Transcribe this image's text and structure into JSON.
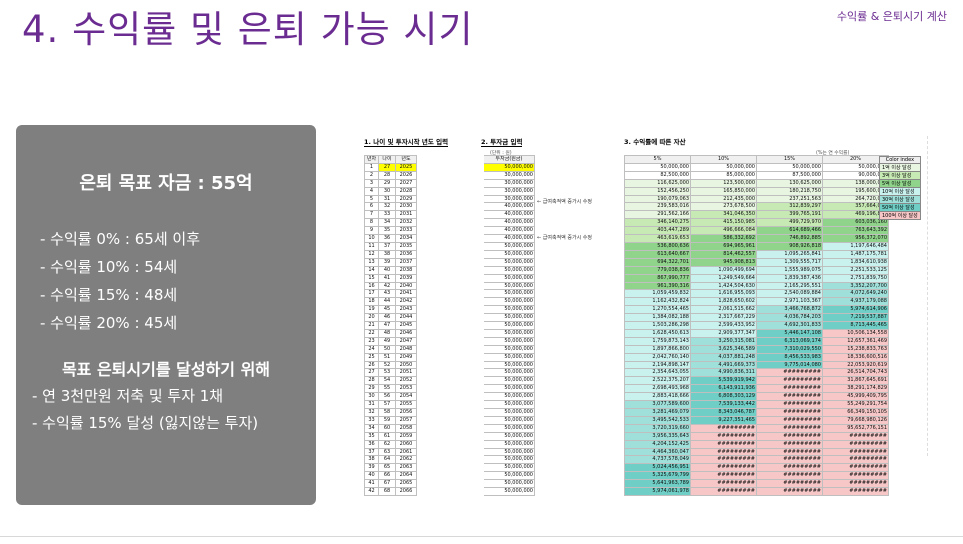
{
  "title": "4. 수익률 및 은퇴 가능 시기",
  "corner_label": "수익률 & 은퇴시기 계산",
  "summary": {
    "heading": "은퇴 목표 자금 : 55억",
    "rates": [
      "- 수익률    0% : 65세 이후",
      "- 수익률 10% : 54세",
      "- 수익률 15% : 48세",
      "- 수익률 20% : 45세"
    ],
    "goal_heading": "목표 은퇴시기를 달성하기 위해",
    "goal_items": [
      "- 연 3천만원 저축 및 투자 1채",
      "- 수익률 15% 달성 (잃지않는 투자)"
    ]
  },
  "sheet": {
    "section1": "1. 나이 및 투자시작 년도 입력",
    "section2": "2. 투자금 입력",
    "section3": "3. 수익률에 따른 자산",
    "unit_left": "(단위 : 원)",
    "unit_right": "(%는 연 수익률)",
    "left_headers": [
      "년차",
      "나이",
      "년도",
      "투자금(원금)"
    ],
    "rate_headers": [
      "5%",
      "10%",
      "15%",
      "20%"
    ],
    "note1": "← 급여축적액 증가시 수정",
    "note2": "← 급여축적액 증가시 수정",
    "legend_title": "Color index",
    "legend_items": [
      {
        "label": "1억 이상 달성",
        "color": "#e8f5e0"
      },
      {
        "label": "3억 이상 달성",
        "color": "#c7e9b4"
      },
      {
        "label": "5억 이상 달성",
        "color": "#8fd48a"
      },
      {
        "label": "10억 이상 달성",
        "color": "#c9f1ee"
      },
      {
        "label": "30억 이상 달성",
        "color": "#9fe0da"
      },
      {
        "label": "50억 이상 달성",
        "color": "#6fcfc6"
      },
      {
        "label": "100억 이상 달성",
        "color": "#f7c6c6"
      }
    ],
    "rows": [
      [
        "1",
        "27",
        "2025",
        "50,000,000",
        "50,000,000",
        "50,000,000",
        "50,000,000",
        "50,000,000"
      ],
      [
        "2",
        "28",
        "2026",
        "30,000,000",
        "82,500,000",
        "85,000,000",
        "87,500,000",
        "90,000,000"
      ],
      [
        "3",
        "29",
        "2027",
        "30,000,000",
        "116,625,000",
        "123,500,000",
        "130,625,000",
        "138,000,000"
      ],
      [
        "4",
        "30",
        "2028",
        "30,000,000",
        "152,456,250",
        "165,850,000",
        "180,218,750",
        "195,600,000"
      ],
      [
        "5",
        "31",
        "2029",
        "30,000,000",
        "190,079,063",
        "212,435,000",
        "237,251,563",
        "264,720,000"
      ],
      [
        "6",
        "32",
        "2030",
        "40,000,000",
        "239,583,016",
        "273,678,500",
        "312,839,297",
        "357,664,000"
      ],
      [
        "7",
        "33",
        "2031",
        "40,000,000",
        "291,562,166",
        "341,046,350",
        "399,765,191",
        "469,196,800"
      ],
      [
        "8",
        "34",
        "2032",
        "40,000,000",
        "346,140,275",
        "415,150,985",
        "499,729,970",
        "603,036,160"
      ],
      [
        "9",
        "35",
        "2033",
        "40,000,000",
        "403,447,289",
        "496,666,084",
        "614,689,466",
        "763,643,392"
      ],
      [
        "10",
        "36",
        "2034",
        "40,000,000",
        "463,619,653",
        "586,332,692",
        "746,892,885",
        "956,372,070"
      ],
      [
        "11",
        "37",
        "2035",
        "50,000,000",
        "536,800,636",
        "694,965,961",
        "908,926,818",
        "1,197,646,484"
      ],
      [
        "12",
        "38",
        "2036",
        "50,000,000",
        "613,640,667",
        "814,462,557",
        "1,095,265,841",
        "1,487,175,781"
      ],
      [
        "13",
        "39",
        "2037",
        "50,000,000",
        "694,322,701",
        "945,908,813",
        "1,309,555,717",
        "1,834,610,938"
      ],
      [
        "14",
        "40",
        "2038",
        "50,000,000",
        "779,038,836",
        "1,090,499,694",
        "1,555,989,075",
        "2,251,533,125"
      ],
      [
        "15",
        "41",
        "2039",
        "50,000,000",
        "867,990,777",
        "1,249,549,664",
        "1,839,387,436",
        "2,751,839,750"
      ],
      [
        "16",
        "42",
        "2040",
        "50,000,000",
        "961,390,316",
        "1,424,504,630",
        "2,165,295,551",
        "3,352,207,700"
      ],
      [
        "17",
        "43",
        "2041",
        "50,000,000",
        "1,059,459,832",
        "1,616,955,093",
        "2,540,089,884",
        "4,072,649,240"
      ],
      [
        "18",
        "44",
        "2042",
        "50,000,000",
        "1,162,432,824",
        "1,828,650,602",
        "2,971,103,367",
        "4,937,179,088"
      ],
      [
        "19",
        "45",
        "2043",
        "50,000,000",
        "1,270,554,465",
        "2,061,515,662",
        "3,466,768,872",
        "5,974,614,906"
      ],
      [
        "20",
        "46",
        "2044",
        "50,000,000",
        "1,384,082,188",
        "2,317,667,229",
        "4,036,784,203",
        "7,219,537,887"
      ],
      [
        "21",
        "47",
        "2045",
        "50,000,000",
        "1,503,286,298",
        "2,599,433,952",
        "4,692,301,833",
        "8,713,445,465"
      ],
      [
        "22",
        "48",
        "2046",
        "50,000,000",
        "1,628,450,613",
        "2,909,377,347",
        "5,446,147,108",
        "10,506,134,558"
      ],
      [
        "23",
        "49",
        "2047",
        "50,000,000",
        "1,759,873,143",
        "3,250,315,081",
        "6,313,069,174",
        "12,657,361,469"
      ],
      [
        "24",
        "50",
        "2048",
        "50,000,000",
        "1,897,866,800",
        "3,625,346,589",
        "7,310,029,550",
        "15,238,833,763"
      ],
      [
        "25",
        "51",
        "2049",
        "50,000,000",
        "2,042,760,140",
        "4,037,881,248",
        "8,456,533,983",
        "18,336,600,516"
      ],
      [
        "26",
        "52",
        "2050",
        "50,000,000",
        "2,194,898,147",
        "4,491,669,373",
        "9,775,014,080",
        "22,053,920,619"
      ],
      [
        "27",
        "53",
        "2051",
        "50,000,000",
        "2,354,643,055",
        "4,990,836,311",
        "#########",
        "26,514,704,743"
      ],
      [
        "28",
        "54",
        "2052",
        "50,000,000",
        "2,522,375,207",
        "5,539,919,942",
        "#########",
        "31,867,645,691"
      ],
      [
        "29",
        "55",
        "2053",
        "50,000,000",
        "2,698,493,968",
        "6,143,911,936",
        "#########",
        "38,291,174,829"
      ],
      [
        "30",
        "56",
        "2054",
        "50,000,000",
        "2,883,418,666",
        "6,808,303,129",
        "#########",
        "45,999,409,795"
      ],
      [
        "31",
        "57",
        "2055",
        "50,000,000",
        "3,077,589,600",
        "7,539,133,442",
        "#########",
        "55,249,291,754"
      ],
      [
        "32",
        "58",
        "2056",
        "50,000,000",
        "3,281,469,079",
        "8,343,046,787",
        "#########",
        "66,349,150,105"
      ],
      [
        "33",
        "59",
        "2057",
        "50,000,000",
        "3,495,542,533",
        "9,227,351,465",
        "#########",
        "79,668,980,126"
      ],
      [
        "34",
        "60",
        "2058",
        "50,000,000",
        "3,720,319,660",
        "#########",
        "#########",
        "95,652,776,151"
      ],
      [
        "35",
        "61",
        "2059",
        "50,000,000",
        "3,956,335,643",
        "#########",
        "#########",
        "#########"
      ],
      [
        "36",
        "62",
        "2060",
        "50,000,000",
        "4,204,152,425",
        "#########",
        "#########",
        "#########"
      ],
      [
        "37",
        "63",
        "2061",
        "50,000,000",
        "4,464,360,047",
        "#########",
        "#########",
        "#########"
      ],
      [
        "38",
        "64",
        "2062",
        "50,000,000",
        "4,737,578,049",
        "#########",
        "#########",
        "#########"
      ],
      [
        "39",
        "65",
        "2063",
        "50,000,000",
        "5,024,456,951",
        "#########",
        "#########",
        "#########"
      ],
      [
        "40",
        "66",
        "2064",
        "50,000,000",
        "5,325,679,799",
        "#########",
        "#########",
        "#########"
      ],
      [
        "41",
        "67",
        "2065",
        "50,000,000",
        "5,641,963,789",
        "#########",
        "#########",
        "#########"
      ],
      [
        "42",
        "68",
        "2066",
        "50,000,000",
        "5,974,061,978",
        "#########",
        "#########",
        "#########"
      ]
    ]
  }
}
